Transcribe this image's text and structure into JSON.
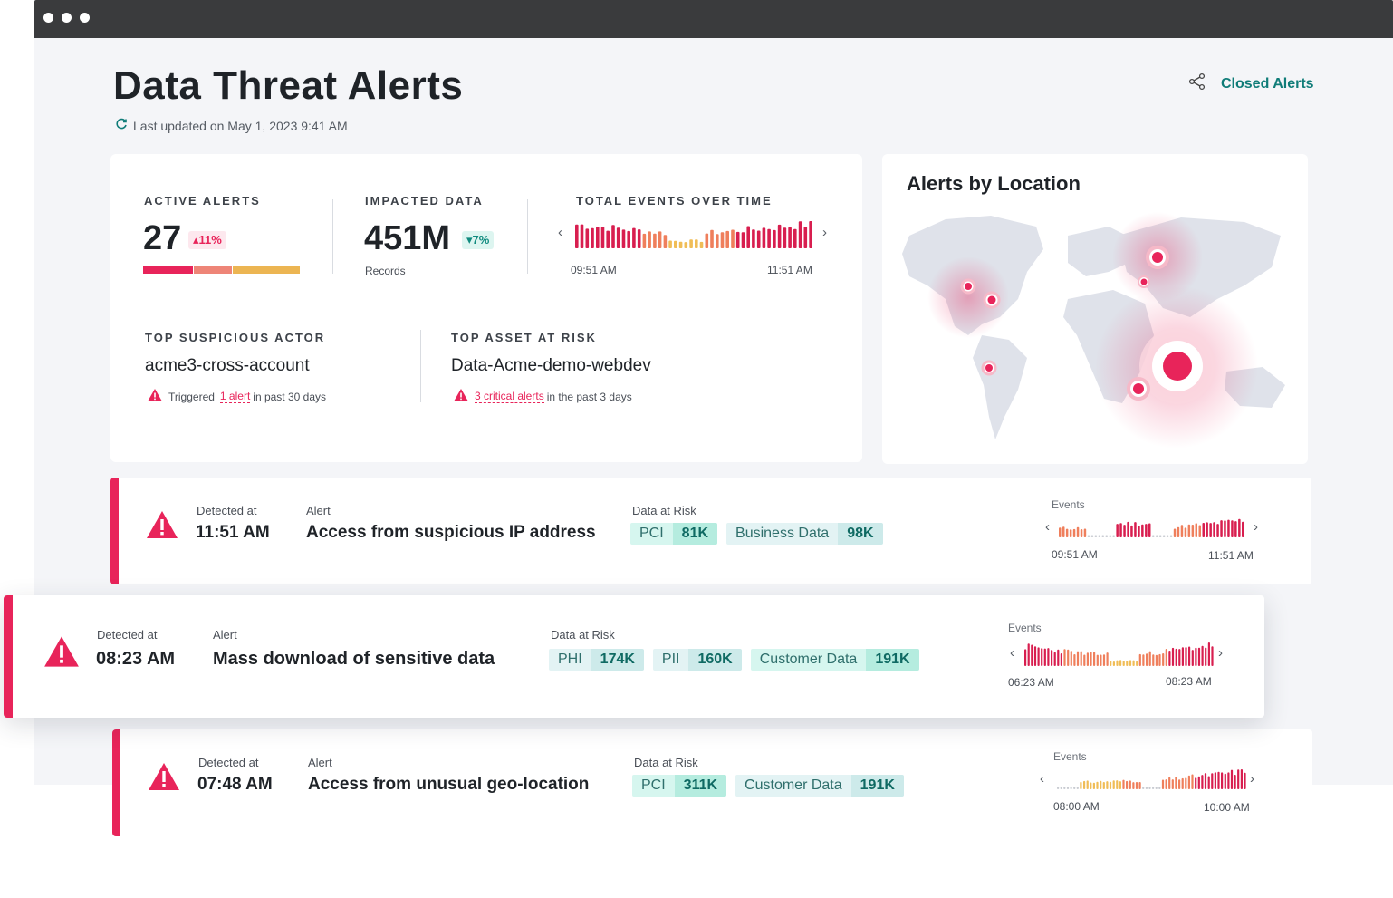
{
  "header": {
    "title": "Data Threat Alerts",
    "last_updated": "Last updated on May 1, 2023 9:41 AM",
    "closed_alerts": "Closed Alerts"
  },
  "metrics": {
    "active_alerts": {
      "label": "ACTIVE ALERTS",
      "value": "27",
      "delta": "11%",
      "severity_bar_colors": [
        "#e8245a",
        "#ee8577",
        "#ecb552"
      ]
    },
    "impacted_data": {
      "label": "IMPACTED DATA",
      "value": "451M",
      "delta": "7%",
      "unit": "Records"
    },
    "total_events": {
      "label": "TOTAL EVENTS OVER TIME",
      "start": "09:51 AM",
      "end": "11:51 AM"
    }
  },
  "top_actor": {
    "label": "TOP SUSPICIOUS ACTOR",
    "name": "acme3-cross-account",
    "note_prefix": "Triggered",
    "note_link": "1 alert",
    "note_suffix": "in past 30 days"
  },
  "top_asset": {
    "label": "TOP ASSET AT RISK",
    "name": "Data-Acme-demo-webdev",
    "note_link": "3 critical alerts",
    "note_suffix": "in the past 3 days"
  },
  "map": {
    "title": "Alerts by Location"
  },
  "alerts": [
    {
      "detected_label": "Detected at",
      "time": "11:51 AM",
      "alert_label": "Alert",
      "title": "Access from suspicious IP address",
      "risk_label": "Data at Risk",
      "tags": [
        {
          "k": "PCI",
          "v": "81K",
          "style": "teal"
        },
        {
          "k": "Business Data",
          "v": "98K",
          "style": "light"
        }
      ],
      "events_label": "Events",
      "ev_start": "09:51 AM",
      "ev_end": "11:51 AM"
    },
    {
      "detected_label": "Detected at",
      "time": "08:23 AM",
      "alert_label": "Alert",
      "title": "Mass download of sensitive data",
      "risk_label": "Data at Risk",
      "tags": [
        {
          "k": "PHI",
          "v": "174K",
          "style": "light"
        },
        {
          "k": "PII",
          "v": "160K",
          "style": "light"
        },
        {
          "k": "Customer Data",
          "v": "191K",
          "style": "teal"
        }
      ],
      "events_label": "Events",
      "ev_start": "06:23 AM",
      "ev_end": "08:23 AM"
    },
    {
      "detected_label": "Detected at",
      "time": "07:48 AM",
      "alert_label": "Alert",
      "title": "Access from unusual geo-location",
      "risk_label": "Data at Risk",
      "tags": [
        {
          "k": "PCI",
          "v": "311K",
          "style": "teal"
        },
        {
          "k": "Customer Data",
          "v": "191K",
          "style": "light"
        }
      ],
      "events_label": "Events",
      "ev_start": "08:00 AM",
      "ev_end": "10:00 AM"
    }
  ],
  "colors": {
    "accent": "#e8245a",
    "teal": "#0f7c78",
    "bar_red": "#d81e4f",
    "bar_orange": "#ef7f5c",
    "bar_yellow": "#f0bd57"
  }
}
